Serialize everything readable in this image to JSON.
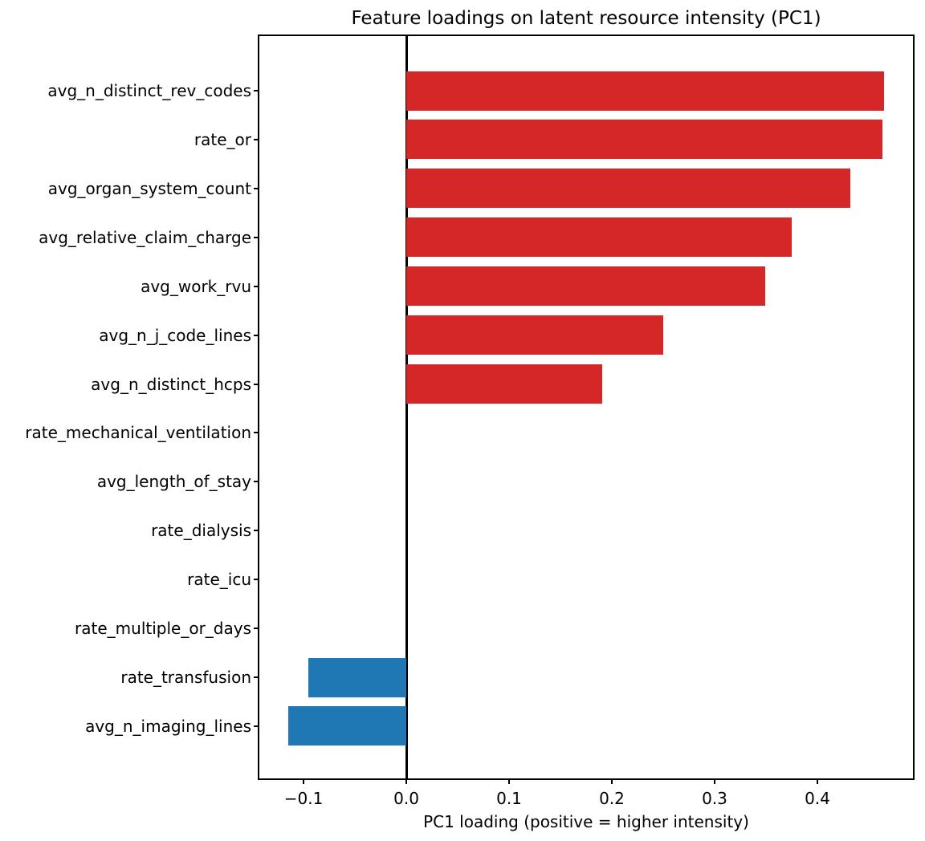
{
  "chart_data": {
    "type": "bar",
    "orientation": "horizontal",
    "title": "Feature loadings on latent resource intensity (PC1)",
    "xlabel": "PC1 loading (positive = higher intensity)",
    "ylabel": "",
    "categories": [
      "avg_n_distinct_rev_codes",
      "rate_or",
      "avg_organ_system_count",
      "avg_relative_claim_charge",
      "avg_work_rvu",
      "avg_n_j_code_lines",
      "avg_n_distinct_hcps",
      "rate_mechanical_ventilation",
      "avg_length_of_stay",
      "rate_dialysis",
      "rate_icu",
      "rate_multiple_or_days",
      "rate_transfusion",
      "avg_n_imaging_lines"
    ],
    "values": [
      0.465,
      0.463,
      0.432,
      0.375,
      0.349,
      0.25,
      0.191,
      0.0,
      0.0,
      0.0,
      0.0,
      0.0,
      -0.095,
      -0.115
    ],
    "xlim": [
      -0.143,
      0.493
    ],
    "xticks": [
      -0.1,
      0.0,
      0.1,
      0.2,
      0.3,
      0.4
    ],
    "xtick_labels": [
      "−0.1",
      "0.0",
      "0.1",
      "0.2",
      "0.3",
      "0.4"
    ],
    "grid": false,
    "legend": null,
    "zero_line_at": 0.0,
    "colors": {
      "positive_bar": "#d62728",
      "negative_bar": "#1f77b4",
      "axis": "#000000",
      "text": "#000000",
      "background": "#ffffff"
    }
  }
}
